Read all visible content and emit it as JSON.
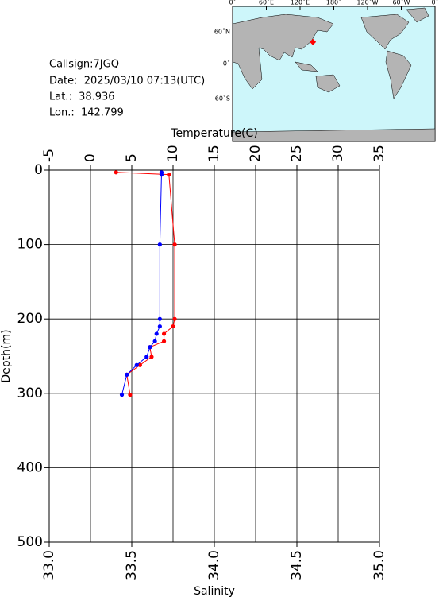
{
  "info": {
    "callsign": "Callsign:7JGQ",
    "date": "Date:  2025/03/10 07:13(UTC)",
    "lat": "Lat.:  38.936",
    "lon": "Lon.:  142.799",
    "lat_value": 38.936,
    "lon_value": 142.799
  },
  "map": {
    "lon_labels": [
      "0˚",
      "60˚E",
      "120˚E",
      "180˚",
      "120˚W",
      "60˚W",
      "0˚"
    ],
    "lat_labels": [
      "60˚N",
      "0˚",
      "60˚S"
    ]
  },
  "chart_data": {
    "type": "line",
    "x_label": "Salinity",
    "x2_label": "Temperature(C)",
    "y_label": "Depth(m)",
    "y": [
      3,
      6,
      100,
      200,
      210,
      220,
      230,
      238,
      251,
      262,
      275,
      302
    ],
    "ylim": [
      0,
      500
    ],
    "y_inverted": true,
    "yticks": [
      0,
      100,
      200,
      300,
      400,
      500
    ],
    "xlim": [
      33,
      35
    ],
    "xticks": [
      {
        "value": 33,
        "label": "33.0"
      },
      {
        "value": 33.5,
        "label": "33.5"
      },
      {
        "value": 34,
        "label": "34.0"
      },
      {
        "value": 34.5,
        "label": "34.5"
      },
      {
        "value": 35,
        "label": "35.0"
      }
    ],
    "x2lim": [
      -5,
      35
    ],
    "x2ticks": [
      -5,
      0,
      5,
      10,
      15,
      20,
      25,
      30,
      35
    ],
    "grid": true,
    "series": [
      {
        "color": "#ff0000",
        "axis": "x2",
        "values": [
          3.1,
          9.5,
          10.2,
          10.2,
          10.0,
          8.9,
          8.9,
          7.2,
          7.4,
          6.0,
          4.4,
          4.8
        ]
      },
      {
        "color": "#0000ff",
        "axis": "x",
        "values": [
          33.68,
          33.68,
          33.67,
          33.67,
          33.67,
          33.65,
          33.64,
          33.61,
          33.59,
          33.53,
          33.47,
          33.44
        ]
      }
    ]
  }
}
